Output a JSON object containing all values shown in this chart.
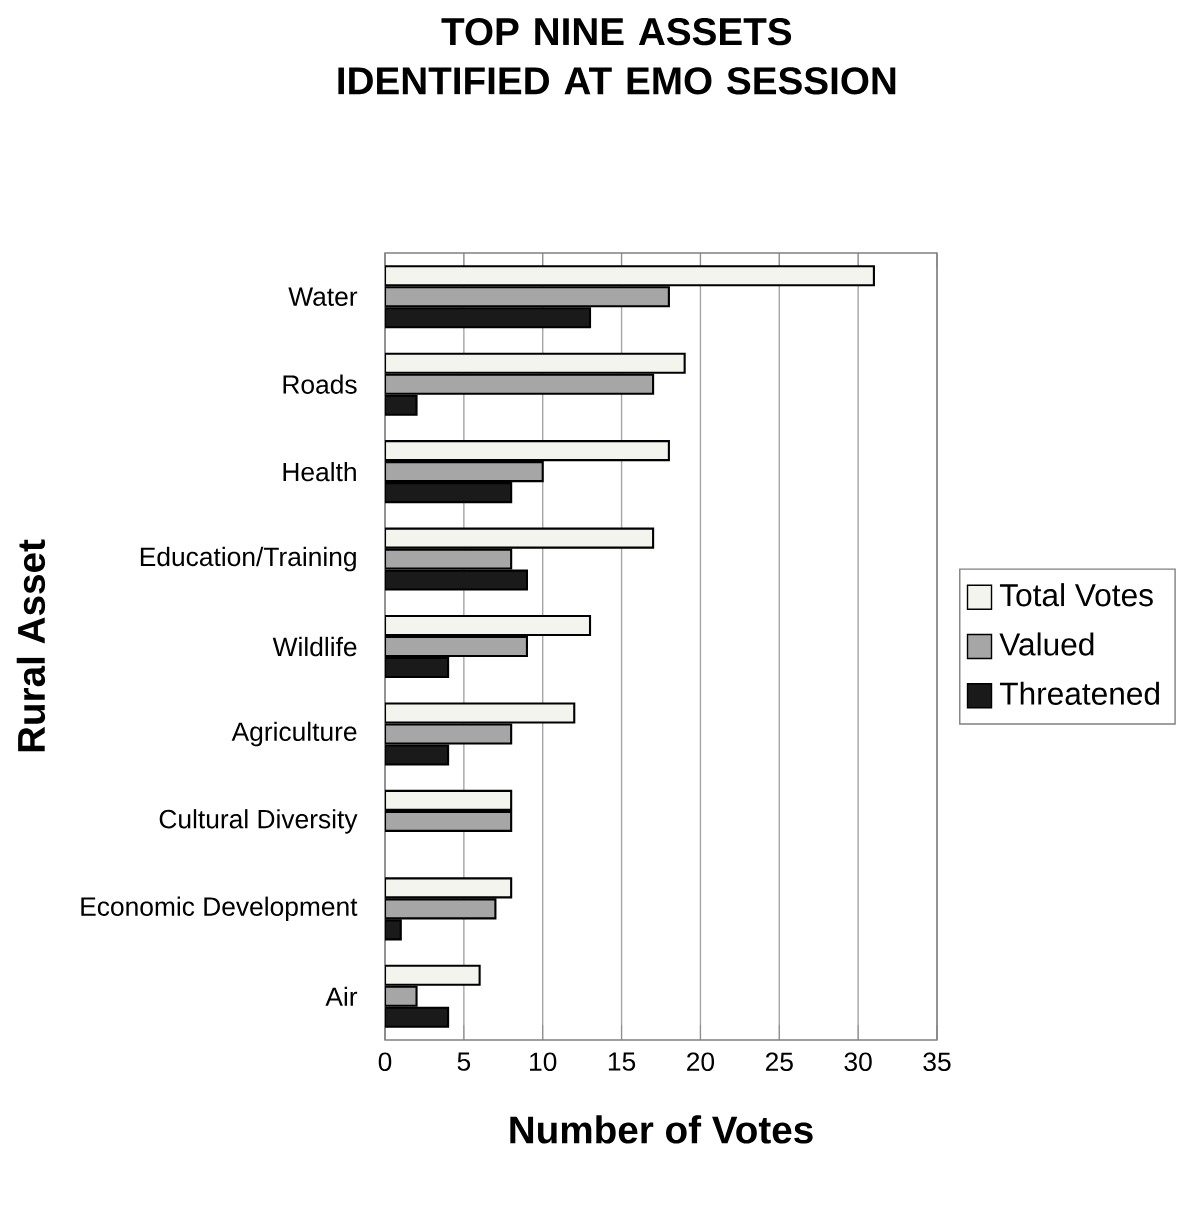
{
  "chart_data": {
    "type": "bar",
    "orientation": "horizontal",
    "title": "TOP NINE ASSETS IDENTIFIED AT EMO SESSION",
    "xlabel": "Number of Votes",
    "ylabel": "Rural Asset",
    "categories": [
      "Water",
      "Roads",
      "Health",
      "Education/Training",
      "Wildlife",
      "Agriculture",
      "Cultural Diversity",
      "Economic Development",
      "Air"
    ],
    "series": [
      {
        "name": "Total Votes",
        "color": "#f4f4ee",
        "values": [
          31,
          19,
          18,
          17,
          13,
          12,
          8,
          8,
          6
        ]
      },
      {
        "name": "Valued",
        "color": "#a6a6a6",
        "values": [
          18,
          17,
          10,
          8,
          9,
          8,
          8,
          7,
          2
        ]
      },
      {
        "name": "Threatened",
        "color": "#1a1a1a",
        "values": [
          13,
          2,
          8,
          9,
          4,
          4,
          0,
          1,
          4
        ]
      }
    ],
    "xlim": [
      0,
      35
    ],
    "xticks": [
      0,
      5,
      10,
      15,
      20,
      25,
      30,
      35
    ],
    "grid": "x",
    "legend": "right"
  }
}
